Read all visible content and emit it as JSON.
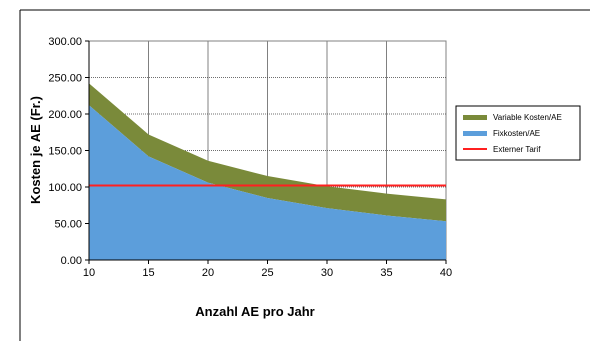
{
  "chart_data": {
    "type": "area",
    "title": "",
    "xlabel": "Anzahl AE pro Jahr",
    "ylabel": "Kosten je AE (Fr.)",
    "x": [
      10,
      15,
      20,
      25,
      30,
      35,
      40
    ],
    "xticks": [
      "10",
      "15",
      "20",
      "25",
      "30",
      "35",
      "40"
    ],
    "yticks": [
      "0.00",
      "50.00",
      "100.00",
      "150.00",
      "200.00",
      "250.00",
      "300.00"
    ],
    "xlim": [
      10,
      40
    ],
    "ylim": [
      0,
      300
    ],
    "grid": true,
    "stacked": true,
    "legend_position": "right",
    "series": [
      {
        "name": "Variable Kosten/AE",
        "kind": "area",
        "color": "#7a8a3a",
        "values": [
          30,
          30,
          30,
          30,
          30,
          30,
          30
        ]
      },
      {
        "name": "Fixkosten/AE",
        "kind": "area",
        "color": "#5c9edb",
        "values": [
          212,
          142,
          106,
          85,
          71,
          61,
          53
        ]
      },
      {
        "name": "Externer Tarif",
        "kind": "line",
        "color": "#ff2020",
        "values": [
          102,
          102,
          102,
          102,
          102,
          102,
          102
        ]
      }
    ],
    "legend": [
      "Variable Kosten/AE",
      "Fixkosten/AE",
      "Externer Tarif"
    ]
  }
}
